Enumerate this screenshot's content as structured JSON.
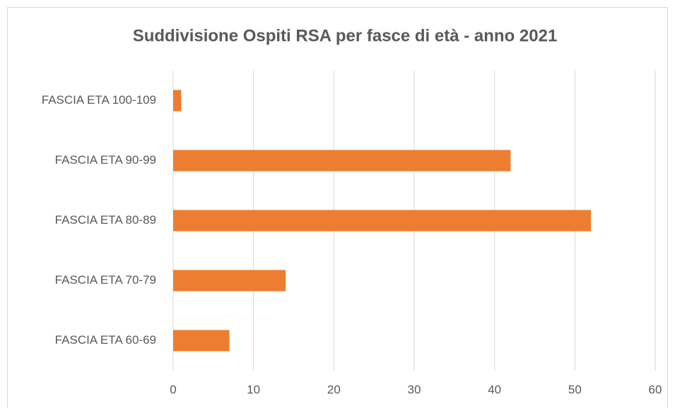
{
  "chart_data": {
    "type": "bar",
    "orientation": "horizontal",
    "title": "Suddivisione Ospiti RSA per fasce di età - anno 2021",
    "categories": [
      "FASCIA ETA 100-109",
      "FASCIA ETA 90-99",
      "FASCIA ETA 80-89",
      "FASCIA ETA 70-79",
      "FASCIA ETA 60-69"
    ],
    "values": [
      1,
      42,
      52,
      14,
      7
    ],
    "color": "#ed7d31",
    "xlim": [
      0,
      60
    ],
    "xticks": [
      0,
      10,
      20,
      30,
      40,
      50,
      60
    ],
    "grid": true
  }
}
